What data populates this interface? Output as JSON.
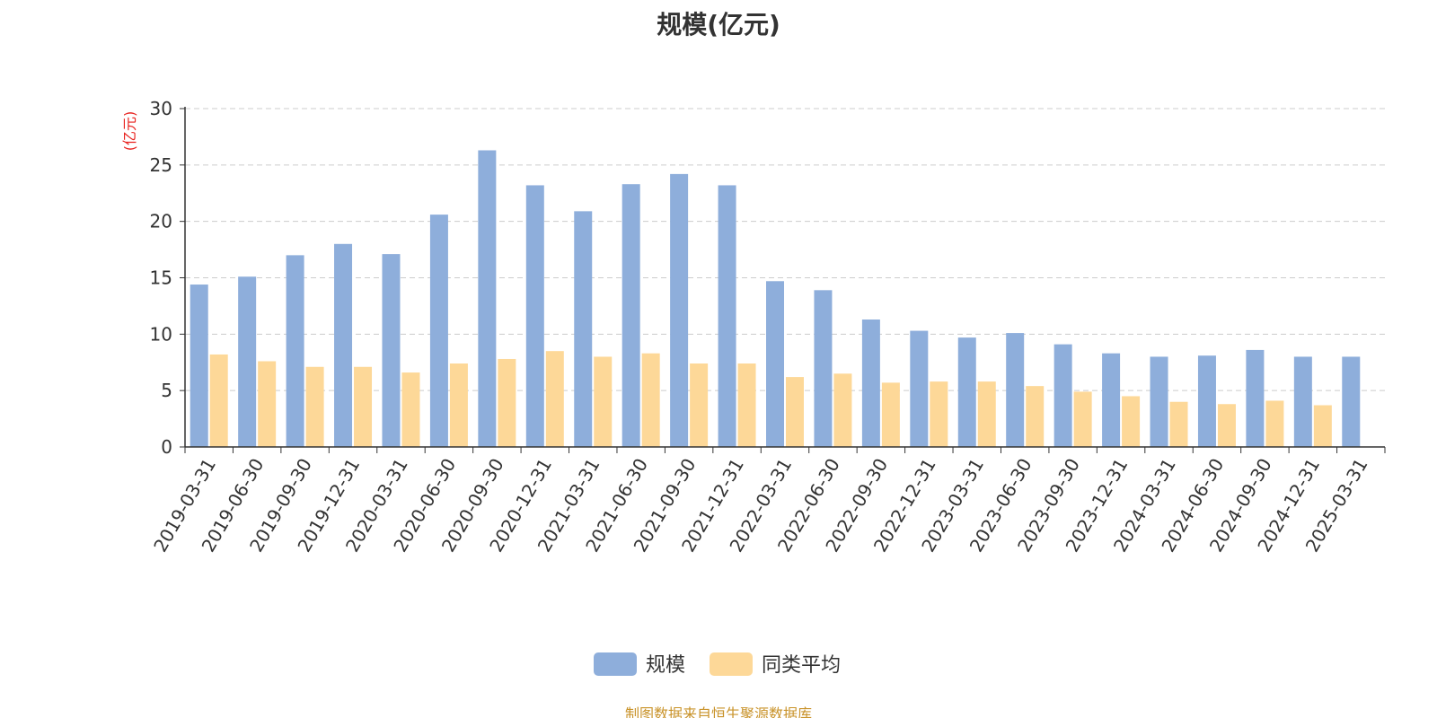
{
  "chart_data": {
    "type": "bar",
    "title": "规模(亿元)",
    "ylabel": "(亿元)",
    "xlabel": "",
    "ylim": [
      0,
      30
    ],
    "yticks": [
      0,
      5,
      10,
      15,
      20,
      25,
      30
    ],
    "grid": true,
    "legend_position": "bottom-center",
    "categories": [
      "2019-03-31",
      "2019-06-30",
      "2019-09-30",
      "2019-12-31",
      "2020-03-31",
      "2020-06-30",
      "2020-09-30",
      "2020-12-31",
      "2021-03-31",
      "2021-06-30",
      "2021-09-30",
      "2021-12-31",
      "2022-03-31",
      "2022-06-30",
      "2022-09-30",
      "2022-12-31",
      "2023-03-31",
      "2023-06-30",
      "2023-09-30",
      "2023-12-31",
      "2024-03-31",
      "2024-06-30",
      "2024-09-30",
      "2024-12-31",
      "2025-03-31"
    ],
    "series": [
      {
        "name": "规模",
        "color": "#8eaedb",
        "values": [
          14.4,
          15.1,
          17.0,
          18.0,
          17.1,
          20.6,
          26.3,
          23.2,
          20.9,
          23.3,
          24.2,
          23.2,
          14.7,
          13.9,
          11.3,
          10.3,
          9.7,
          10.1,
          9.1,
          8.3,
          8.0,
          8.1,
          8.6,
          8.0,
          8.0
        ]
      },
      {
        "name": "同类平均",
        "color": "#fdd898",
        "values": [
          8.2,
          7.6,
          7.1,
          7.1,
          6.6,
          7.4,
          7.8,
          8.5,
          8.0,
          8.3,
          7.4,
          7.4,
          6.2,
          6.5,
          5.7,
          5.8,
          5.8,
          5.4,
          4.9,
          4.5,
          4.0,
          3.8,
          4.1,
          3.7,
          null
        ]
      }
    ]
  },
  "source_note": "制图数据来自恒生聚源数据库"
}
